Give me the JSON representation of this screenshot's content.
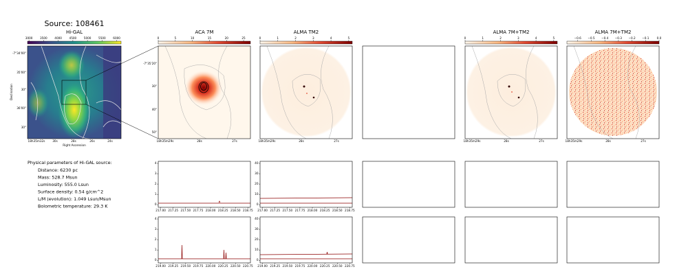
{
  "title": "Source: 108461",
  "higal": {
    "title": "Hi-GAL",
    "clim": [
      2950,
      6150
    ],
    "cticks": [
      3000,
      3500,
      4000,
      4500,
      5000,
      5500,
      6000
    ],
    "ylabel": "Declination",
    "xlabel": "Right Ascension",
    "dec_labels": [
      "-7°34'00\"",
      "35'00\"",
      "30\"",
      "36'00\"",
      "30\""
    ],
    "ra_labels": [
      "18h35m32s",
      "30s",
      "28s",
      "26s",
      "24s"
    ]
  },
  "cutouts": [
    {
      "title": "ACA 7M",
      "clim": [
        0,
        27
      ],
      "cticks": [
        0,
        5,
        10,
        15,
        20,
        25
      ],
      "dec_labels": [
        "-7°35'20\"",
        "30\"",
        "40\"",
        "50\""
      ],
      "ra_labels": [
        "18h35m29s",
        "28s",
        "27s"
      ]
    },
    {
      "title": "ALMA TM2",
      "clim": [
        0,
        5.2
      ],
      "cticks": [
        0,
        1,
        2,
        3,
        4,
        5
      ],
      "ra_labels": [
        "18h35m29s",
        "28s",
        "27s"
      ]
    },
    {
      "title": "ALMA 7M+TM2",
      "clim": [
        0,
        5.2
      ],
      "cticks": [
        0,
        1,
        2,
        3,
        4,
        5
      ],
      "ra_labels": [
        "18h35m29s",
        "28s",
        "27s"
      ]
    },
    {
      "title": "ALMA 7M+TM2",
      "clim": [
        -0.68,
        0.0
      ],
      "cticks": [
        {
          "value": -0.6,
          "label": "−0.6"
        },
        {
          "value": -0.5,
          "label": "−0.5"
        },
        {
          "value": -0.4,
          "label": "−0.4"
        },
        {
          "value": -0.3,
          "label": "−0.3"
        },
        {
          "value": -0.2,
          "label": "−0.2"
        },
        {
          "value": -0.1,
          "label": "−0.1"
        },
        {
          "value": 0.0,
          "label": "0.0"
        }
      ],
      "ra_labels": [
        "18h35m29s",
        "28s",
        "27s"
      ]
    }
  ],
  "info": {
    "heading": "Physical parameters of Hi-GAL source:",
    "lines": [
      "Distance: 6230 pc",
      "Mass: 528.7 Msun",
      "Luminosity: 555.0 Lsun",
      "Surface density: 0.54 g/cm^2",
      "L/M (evolution): 1.049 Lsun/Msun",
      "Bolometric temperature: 29.3 K"
    ]
  },
  "spectra": [
    {
      "xlim": [
        216.95,
        218.8
      ],
      "xticks": [
        {
          "value": 217.0,
          "label": "217.00"
        },
        {
          "value": 217.25,
          "label": "217.25"
        },
        {
          "value": 217.5,
          "label": "217.50"
        },
        {
          "value": 217.75,
          "label": "217.75"
        },
        {
          "value": 218.0,
          "label": "218.00"
        },
        {
          "value": 218.25,
          "label": "218.25"
        },
        {
          "value": 218.5,
          "label": "218.50"
        },
        {
          "value": 218.75,
          "label": "218.75"
        }
      ]
    },
    {
      "xlim": [
        218.95,
        220.8
      ],
      "xticks": [
        {
          "value": 219.0,
          "label": "219.00"
        },
        {
          "value": 219.25,
          "label": "219.25"
        },
        {
          "value": 219.5,
          "label": "219.50"
        },
        {
          "value": 219.75,
          "label": "219.75"
        },
        {
          "value": 220.0,
          "label": "220.00"
        },
        {
          "value": 220.25,
          "label": "220.25"
        },
        {
          "value": 220.5,
          "label": "220.50"
        },
        {
          "value": 220.75,
          "label": "220.75"
        }
      ]
    }
  ],
  "spectra_y": [
    {
      "ylim": [
        -0.25,
        4.2
      ],
      "yticks": [
        0,
        1,
        2,
        3,
        4
      ]
    },
    {
      "ylim": [
        -2.5,
        42
      ],
      "yticks": [
        0,
        10,
        20,
        30,
        40
      ]
    }
  ]
}
